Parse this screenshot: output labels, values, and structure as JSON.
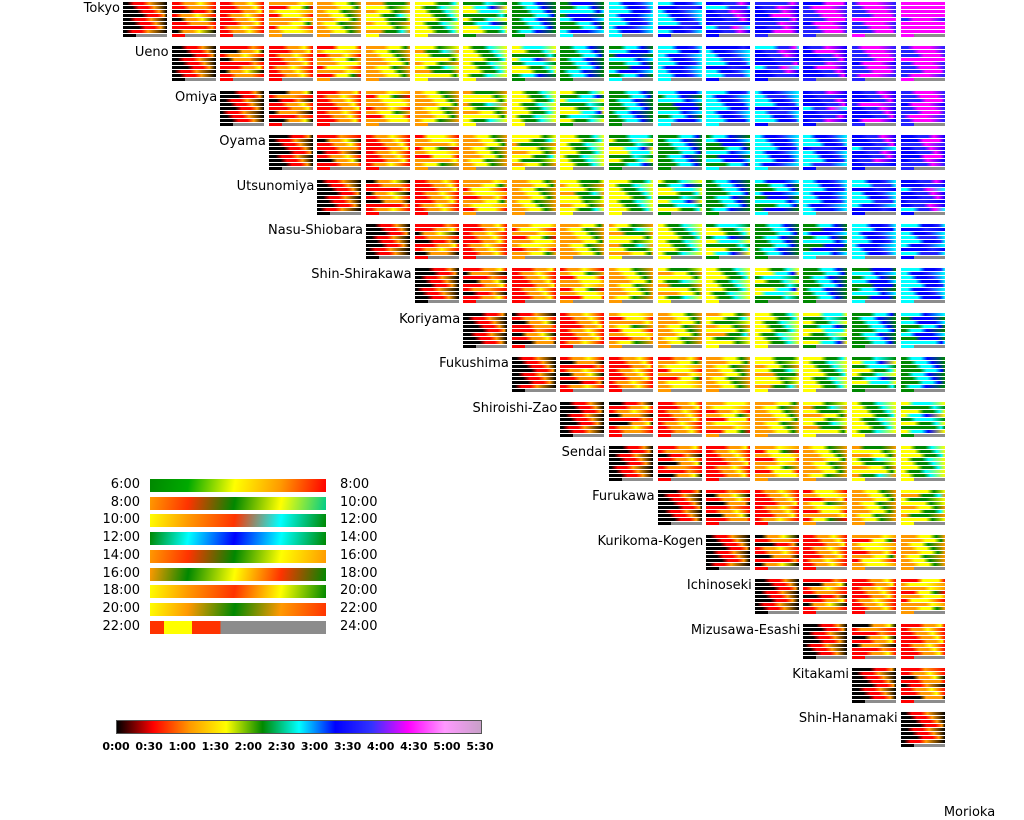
{
  "diagram": {
    "stations": [
      "Tokyo",
      "Ueno",
      "Omiya",
      "Oyama",
      "Utsunomiya",
      "Nasu-Shiobara",
      "Shin-Shirakawa",
      "Koriyama",
      "Fukushima",
      "Shiroishi-Zao",
      "Sendai",
      "Furukawa",
      "Kurikoma-Kogen",
      "Ichinoseki",
      "Mizusawa-Esashi",
      "Kitakami",
      "Shin-Hanamaki",
      "Morioka"
    ],
    "colorbar": {
      "colors": [
        "#000000",
        "#ff0000",
        "#ff9900",
        "#ffff00",
        "#008800",
        "#00ffff",
        "#0000ff",
        "#3333ff",
        "#ff00ff",
        "#ff99ff",
        "#c8a0c8"
      ],
      "ticks": [
        "0:00",
        "0:30",
        "1:00",
        "1:30",
        "2:00",
        "2:30",
        "3:00",
        "3:30",
        "4:00",
        "4:30",
        "5:00",
        "5:30"
      ]
    },
    "legend": {
      "rows": [
        {
          "start": "6:00",
          "end": "8:00"
        },
        {
          "start": "8:00",
          "end": "10:00"
        },
        {
          "start": "10:00",
          "end": "12:00"
        },
        {
          "start": "12:00",
          "end": "14:00"
        },
        {
          "start": "14:00",
          "end": "16:00"
        },
        {
          "start": "16:00",
          "end": "18:00"
        },
        {
          "start": "18:00",
          "end": "20:00"
        },
        {
          "start": "20:00",
          "end": "22:00"
        },
        {
          "start": "22:00",
          "end": "24:00"
        }
      ]
    }
  }
}
